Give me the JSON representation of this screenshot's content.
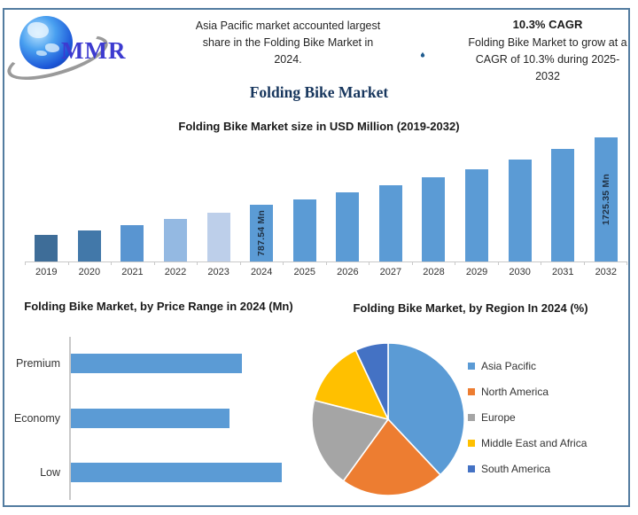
{
  "frame": {
    "border_color": "#537CA0"
  },
  "header": {
    "logo_text": "MMR",
    "bolt_icon_bg": "#275E90",
    "flame_icon_bg": "#1F5C8F",
    "highlight": "Asia Pacific market accounted largest share in the Folding Bike Market in 2024.",
    "cagr_heading": "10.3% CAGR",
    "cagr_detail": "Folding Bike Market to grow at a CAGR of 10.3% during 2025-2032"
  },
  "main_title": "Folding Bike Market",
  "chart_data": [
    {
      "type": "bar",
      "title": "Folding Bike Market size in USD Million (2019-2032)",
      "categories": [
        "2019",
        "2020",
        "2021",
        "2022",
        "2023",
        "2024",
        "2025",
        "2026",
        "2027",
        "2028",
        "2029",
        "2030",
        "2031",
        "2032"
      ],
      "values": [
        375,
        430,
        500,
        590,
        675,
        787.54,
        868.66,
        958.13,
        1056.82,
        1165.67,
        1285.74,
        1418.17,
        1564.24,
        1725.35
      ],
      "unit": "USD Mn",
      "ylim": [
        0,
        1725.35
      ],
      "value_axis_visible": false,
      "grid": false,
      "bar_colors": [
        "#3E6D98",
        "#4278A9",
        "#5995D1",
        "#94B9E2",
        "#BDCFEA",
        "#5B9BD5",
        "#5B9BD5",
        "#5B9BD5",
        "#5B9BD5",
        "#5B9BD5",
        "#5B9BD5",
        "#5B9BD5",
        "#5B9BD5",
        "#5B9BD5"
      ],
      "data_labels": [
        {
          "category": "2024",
          "text": "787.54 Mn"
        },
        {
          "category": "2032",
          "text": "1725.35 Mn"
        }
      ],
      "note": "only 2024 and 2032 are labeled; other values estimated from bar heights and the stated 10.3% CAGR"
    },
    {
      "type": "bar",
      "orientation": "horizontal",
      "title": "Folding Bike Market, by Price Range in 2024 (Mn)",
      "categories": [
        "Premium",
        "Economy",
        "Low"
      ],
      "values": [
        81,
        75,
        100
      ],
      "bar_color": "#5B9BD5",
      "value_axis_visible": false,
      "grid": false,
      "note": "axis unlabeled; values are relative bar lengths as % of longest bar"
    },
    {
      "type": "pie",
      "title": "Folding Bike Market, by Region In 2024 (%)",
      "series": [
        {
          "name": "Asia Pacific",
          "value": 38,
          "color": "#5B9BD5"
        },
        {
          "name": "North America",
          "value": 22,
          "color": "#ED7D31"
        },
        {
          "name": "Europe",
          "value": 19,
          "color": "#A5A5A5"
        },
        {
          "name": "Middle East and Africa",
          "value": 14,
          "color": "#FFC000"
        },
        {
          "name": "South America",
          "value": 7,
          "color": "#4472C4"
        }
      ],
      "start_angle": 0,
      "legend_position": "right",
      "note": "slice percentages estimated from slice angles"
    }
  ]
}
